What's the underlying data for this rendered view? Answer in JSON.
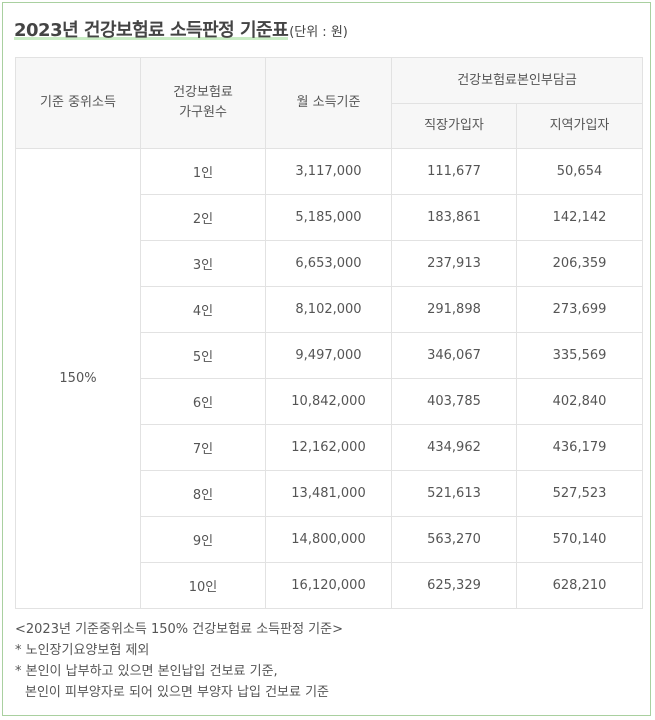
{
  "title": "2023년 건강보험료 소득판정 기준표",
  "unit": "(단위 : 원)",
  "headers": {
    "median_income": "기준 중위소득",
    "household_line1": "건강보험료",
    "household_line2": "가구원수",
    "monthly_income": "월 소득기준",
    "premium_group": "건강보험료본인부담금",
    "employee": "직장가입자",
    "regional": "지역가입자"
  },
  "median_value": "150%",
  "rows": [
    {
      "members": "1인",
      "income": "3,117,000",
      "employee": "111,677",
      "regional": "50,654"
    },
    {
      "members": "2인",
      "income": "5,185,000",
      "employee": "183,861",
      "regional": "142,142"
    },
    {
      "members": "3인",
      "income": "6,653,000",
      "employee": "237,913",
      "regional": "206,359"
    },
    {
      "members": "4인",
      "income": "8,102,000",
      "employee": "291,898",
      "regional": "273,699"
    },
    {
      "members": "5인",
      "income": "9,497,000",
      "employee": "346,067",
      "regional": "335,569"
    },
    {
      "members": "6인",
      "income": "10,842,000",
      "employee": "403,785",
      "regional": "402,840"
    },
    {
      "members": "7인",
      "income": "12,162,000",
      "employee": "434,962",
      "regional": "436,179"
    },
    {
      "members": "8인",
      "income": "13,481,000",
      "employee": "521,613",
      "regional": "527,523"
    },
    {
      "members": "9인",
      "income": "14,800,000",
      "employee": "563,270",
      "regional": "570,140"
    },
    {
      "members": "10인",
      "income": "16,120,000",
      "employee": "625,329",
      "regional": "628,210"
    }
  ],
  "notes": [
    "<2023년 기준중위소득 150% 건강보험료 소득판정 기준>",
    "* 노인장기요양보험 제외",
    "* 본인이 납부하고 있으면 본인납입 건보료 기준,",
    "본인이 피부양자로 되어 있으면 부양자 납입 건보료 기준"
  ]
}
